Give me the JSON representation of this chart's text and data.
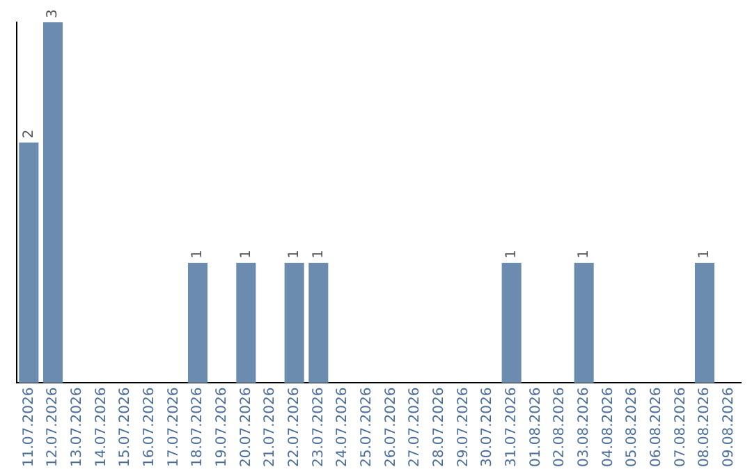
{
  "chart_data": {
    "type": "bar",
    "categories": [
      "11.07.2026",
      "12.07.2026",
      "13.07.2026",
      "14.07.2026",
      "15.07.2026",
      "16.07.2026",
      "17.07.2026",
      "18.07.2026",
      "19.07.2026",
      "20.07.2026",
      "21.07.2026",
      "22.07.2026",
      "23.07.2026",
      "24.07.2026",
      "25.07.2026",
      "26.07.2026",
      "27.07.2026",
      "28.07.2026",
      "29.07.2026",
      "30.07.2026",
      "31.07.2026",
      "01.08.2026",
      "02.08.2026",
      "03.08.2026",
      "04.08.2026",
      "05.08.2026",
      "06.08.2026",
      "07.08.2026",
      "08.08.2026",
      "09.08.2026"
    ],
    "values": [
      2,
      3,
      0,
      0,
      0,
      0,
      0,
      1,
      0,
      1,
      0,
      1,
      1,
      0,
      0,
      0,
      0,
      0,
      0,
      0,
      1,
      0,
      0,
      1,
      0,
      0,
      0,
      0,
      1,
      0
    ],
    "value_labels": [
      "2",
      "3",
      null,
      null,
      null,
      null,
      null,
      "1",
      null,
      "1",
      null,
      "1",
      "1",
      null,
      null,
      null,
      null,
      null,
      null,
      null,
      "1",
      null,
      null,
      "1",
      null,
      null,
      null,
      null,
      "1",
      null
    ],
    "color": "#6b8cae",
    "tick_labels": "x",
    "grid": false,
    "legend": false
  }
}
